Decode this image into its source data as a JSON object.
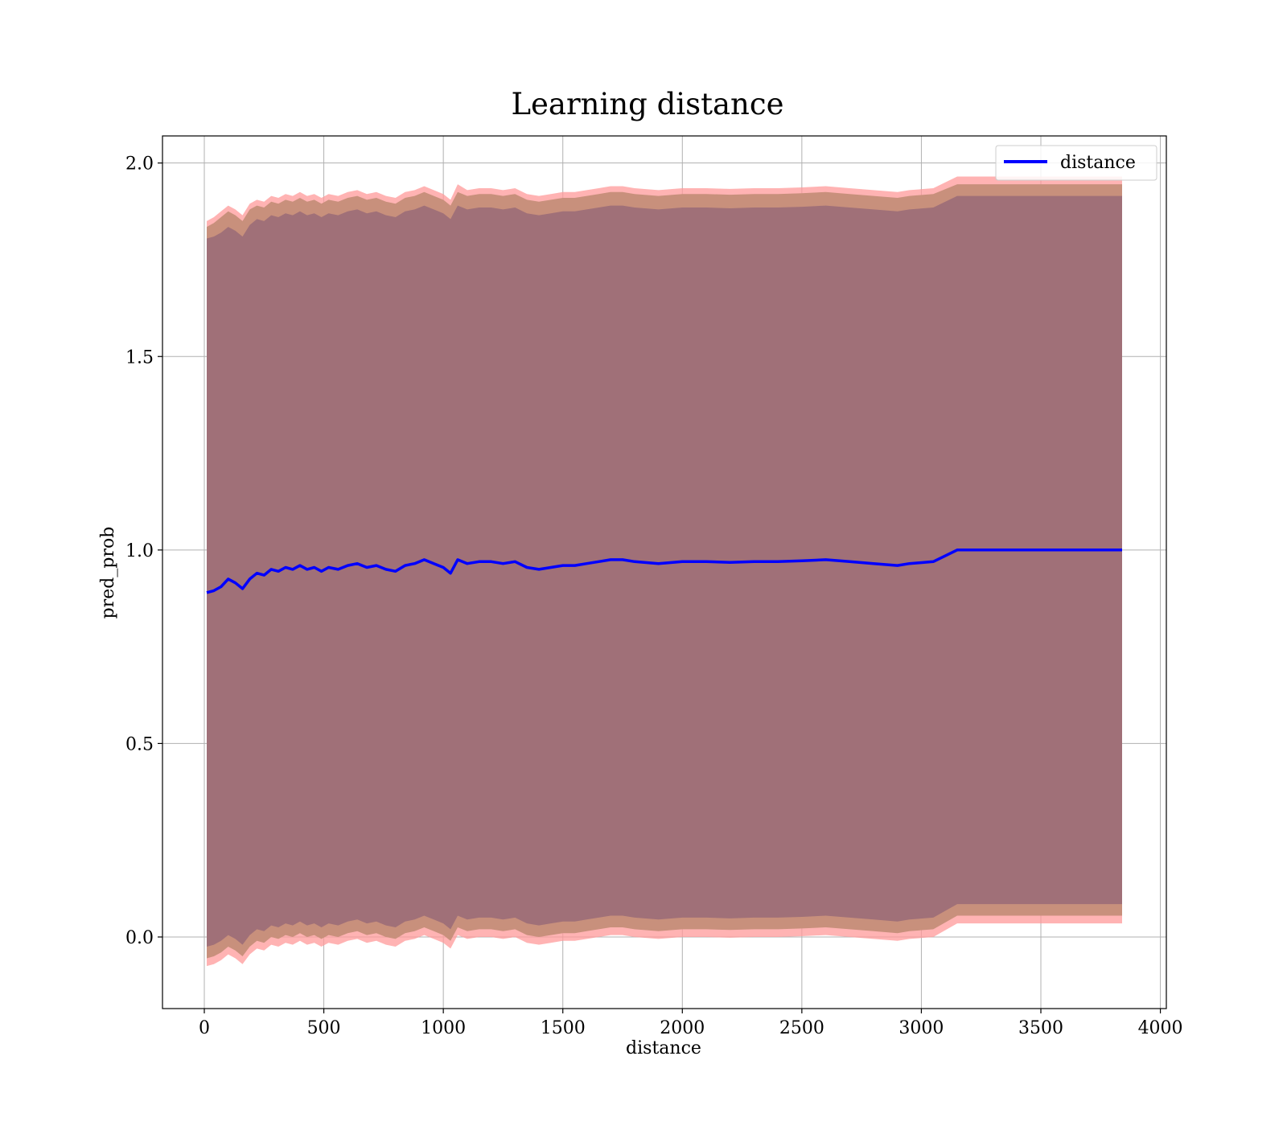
{
  "chart_data": {
    "type": "line",
    "title": "Learning distance",
    "xlabel": "distance",
    "ylabel": "pred_prob",
    "xlim": [
      -175,
      4025
    ],
    "ylim": [
      -0.185,
      2.07
    ],
    "xticks": [
      0,
      500,
      1000,
      1500,
      2000,
      2500,
      3000,
      3500,
      4000
    ],
    "xtick_labels": [
      "0",
      "500",
      "1000",
      "1500",
      "2000",
      "2500",
      "3000",
      "3500",
      "4000"
    ],
    "yticks": [
      0.0,
      0.5,
      1.0,
      1.5,
      2.0
    ],
    "ytick_labels": [
      "0.0",
      "0.5",
      "1.0",
      "1.5",
      "2.0"
    ],
    "grid": true,
    "legend": {
      "position": "top-right",
      "entries": [
        "distance"
      ]
    },
    "colors": {
      "line": "#0000ff",
      "band_outer": "#ff9a9a",
      "band_mid": "#c8907c",
      "band_inner": "#a07078",
      "grid": "#b0b0b0"
    },
    "series": [
      {
        "name": "distance",
        "x": [
          10,
          40,
          70,
          100,
          130,
          160,
          190,
          220,
          250,
          280,
          310,
          340,
          370,
          400,
          430,
          460,
          490,
          520,
          560,
          600,
          640,
          680,
          720,
          760,
          800,
          840,
          880,
          920,
          960,
          1000,
          1030,
          1060,
          1100,
          1150,
          1200,
          1250,
          1300,
          1350,
          1400,
          1450,
          1500,
          1550,
          1600,
          1650,
          1700,
          1750,
          1800,
          1900,
          2000,
          2100,
          2200,
          2300,
          2400,
          2500,
          2600,
          2700,
          2800,
          2900,
          2950,
          3050,
          3150,
          3200,
          3500,
          3840
        ],
        "y": [
          0.89,
          0.895,
          0.905,
          0.925,
          0.915,
          0.9,
          0.925,
          0.94,
          0.935,
          0.95,
          0.945,
          0.955,
          0.95,
          0.96,
          0.95,
          0.955,
          0.945,
          0.955,
          0.95,
          0.96,
          0.965,
          0.955,
          0.96,
          0.95,
          0.945,
          0.96,
          0.965,
          0.975,
          0.965,
          0.955,
          0.94,
          0.975,
          0.965,
          0.97,
          0.97,
          0.965,
          0.97,
          0.955,
          0.95,
          0.955,
          0.96,
          0.96,
          0.965,
          0.97,
          0.975,
          0.975,
          0.97,
          0.965,
          0.97,
          0.97,
          0.968,
          0.97,
          0.97,
          0.972,
          0.975,
          0.97,
          0.965,
          0.96,
          0.965,
          0.97,
          1.0,
          1.0,
          1.0,
          1.0
        ]
      }
    ],
    "bands": [
      {
        "x": [
          10,
          40,
          70,
          100,
          130,
          160,
          190,
          220,
          250,
          280,
          310,
          340,
          370,
          400,
          430,
          460,
          490,
          520,
          560,
          600,
          640,
          680,
          720,
          760,
          800,
          840,
          880,
          920,
          960,
          1000,
          1030,
          1060,
          1100,
          1150,
          1200,
          1250,
          1300,
          1350,
          1400,
          1450,
          1500,
          1550,
          1600,
          1650,
          1700,
          1750,
          1800,
          1900,
          2000,
          2100,
          2200,
          2300,
          2400,
          2500,
          2600,
          2700,
          2800,
          2900,
          2950,
          3050,
          3150,
          3200,
          3500,
          3840
        ],
        "upper": [
          1.85,
          1.86,
          1.875,
          1.89,
          1.88,
          1.865,
          1.895,
          1.905,
          1.9,
          1.915,
          1.91,
          1.92,
          1.915,
          1.925,
          1.915,
          1.92,
          1.91,
          1.92,
          1.915,
          1.925,
          1.93,
          1.92,
          1.925,
          1.915,
          1.91,
          1.925,
          1.93,
          1.94,
          1.93,
          1.92,
          1.905,
          1.945,
          1.93,
          1.935,
          1.935,
          1.93,
          1.935,
          1.92,
          1.915,
          1.92,
          1.925,
          1.925,
          1.93,
          1.935,
          1.94,
          1.94,
          1.935,
          1.93,
          1.935,
          1.935,
          1.933,
          1.935,
          1.935,
          1.937,
          1.94,
          1.935,
          1.93,
          1.925,
          1.93,
          1.935,
          1.965,
          1.965,
          1.965,
          1.965
        ],
        "lower": [
          -0.075,
          -0.07,
          -0.06,
          -0.045,
          -0.055,
          -0.07,
          -0.045,
          -0.03,
          -0.035,
          -0.02,
          -0.025,
          -0.015,
          -0.02,
          -0.01,
          -0.02,
          -0.015,
          -0.025,
          -0.015,
          -0.02,
          -0.01,
          -0.005,
          -0.015,
          -0.01,
          -0.02,
          -0.025,
          -0.01,
          -0.005,
          0.005,
          -0.005,
          -0.015,
          -0.03,
          0.005,
          -0.005,
          0.0,
          0.0,
          -0.005,
          0.0,
          -0.015,
          -0.02,
          -0.015,
          -0.01,
          -0.01,
          -0.005,
          0.0,
          0.005,
          0.005,
          0.0,
          -0.005,
          0.0,
          0.0,
          -0.002,
          0.0,
          0.0,
          0.002,
          0.005,
          0.0,
          -0.005,
          -0.01,
          -0.005,
          0.0,
          0.035,
          0.035,
          0.035,
          0.035
        ]
      },
      {
        "x": [
          10,
          40,
          70,
          100,
          130,
          160,
          190,
          220,
          250,
          280,
          310,
          340,
          370,
          400,
          430,
          460,
          490,
          520,
          560,
          600,
          640,
          680,
          720,
          760,
          800,
          840,
          880,
          920,
          960,
          1000,
          1030,
          1060,
          1100,
          1150,
          1200,
          1250,
          1300,
          1350,
          1400,
          1450,
          1500,
          1550,
          1600,
          1650,
          1700,
          1750,
          1800,
          1900,
          2000,
          2100,
          2200,
          2300,
          2400,
          2500,
          2600,
          2700,
          2800,
          2900,
          2950,
          3050,
          3150,
          3200,
          3500,
          3840
        ],
        "upper": [
          1.835,
          1.845,
          1.86,
          1.875,
          1.865,
          1.85,
          1.88,
          1.89,
          1.885,
          1.9,
          1.895,
          1.905,
          1.9,
          1.91,
          1.9,
          1.905,
          1.895,
          1.905,
          1.9,
          1.91,
          1.915,
          1.905,
          1.91,
          1.9,
          1.895,
          1.91,
          1.915,
          1.925,
          1.915,
          1.905,
          1.89,
          1.925,
          1.915,
          1.92,
          1.92,
          1.915,
          1.92,
          1.905,
          1.9,
          1.905,
          1.91,
          1.91,
          1.915,
          1.92,
          1.925,
          1.925,
          1.92,
          1.915,
          1.92,
          1.92,
          1.918,
          1.92,
          1.92,
          1.922,
          1.925,
          1.92,
          1.915,
          1.91,
          1.915,
          1.92,
          1.945,
          1.945,
          1.945,
          1.945
        ],
        "lower": [
          -0.055,
          -0.05,
          -0.04,
          -0.025,
          -0.035,
          -0.05,
          -0.025,
          -0.01,
          -0.015,
          0.0,
          -0.005,
          0.005,
          0.0,
          0.01,
          0.0,
          0.005,
          -0.005,
          0.005,
          0.0,
          0.01,
          0.015,
          0.005,
          0.01,
          0.0,
          -0.005,
          0.01,
          0.015,
          0.025,
          0.015,
          0.005,
          -0.01,
          0.025,
          0.015,
          0.02,
          0.02,
          0.015,
          0.02,
          0.005,
          0.0,
          0.005,
          0.01,
          0.01,
          0.015,
          0.02,
          0.025,
          0.025,
          0.02,
          0.015,
          0.02,
          0.02,
          0.018,
          0.02,
          0.02,
          0.022,
          0.025,
          0.02,
          0.015,
          0.01,
          0.015,
          0.02,
          0.055,
          0.055,
          0.055,
          0.055
        ]
      },
      {
        "x": [
          10,
          40,
          70,
          100,
          130,
          160,
          190,
          220,
          250,
          280,
          310,
          340,
          370,
          400,
          430,
          460,
          490,
          520,
          560,
          600,
          640,
          680,
          720,
          760,
          800,
          840,
          880,
          920,
          960,
          1000,
          1030,
          1060,
          1100,
          1150,
          1200,
          1250,
          1300,
          1350,
          1400,
          1450,
          1500,
          1550,
          1600,
          1650,
          1700,
          1750,
          1800,
          1900,
          2000,
          2100,
          2200,
          2300,
          2400,
          2500,
          2600,
          2700,
          2800,
          2900,
          2950,
          3050,
          3150,
          3200,
          3500,
          3840
        ],
        "upper": [
          1.805,
          1.81,
          1.82,
          1.835,
          1.825,
          1.81,
          1.84,
          1.855,
          1.85,
          1.865,
          1.86,
          1.87,
          1.865,
          1.875,
          1.865,
          1.87,
          1.86,
          1.87,
          1.865,
          1.875,
          1.88,
          1.87,
          1.875,
          1.865,
          1.86,
          1.875,
          1.88,
          1.89,
          1.88,
          1.87,
          1.855,
          1.89,
          1.88,
          1.885,
          1.885,
          1.88,
          1.885,
          1.87,
          1.865,
          1.87,
          1.875,
          1.875,
          1.88,
          1.885,
          1.89,
          1.89,
          1.885,
          1.88,
          1.885,
          1.885,
          1.883,
          1.885,
          1.885,
          1.887,
          1.89,
          1.885,
          1.88,
          1.875,
          1.88,
          1.885,
          1.915,
          1.915,
          1.915,
          1.915
        ],
        "lower": [
          -0.025,
          -0.02,
          -0.01,
          0.005,
          -0.005,
          -0.02,
          0.005,
          0.02,
          0.015,
          0.03,
          0.025,
          0.035,
          0.03,
          0.04,
          0.03,
          0.035,
          0.025,
          0.035,
          0.03,
          0.04,
          0.045,
          0.035,
          0.04,
          0.03,
          0.025,
          0.04,
          0.045,
          0.055,
          0.045,
          0.035,
          0.02,
          0.055,
          0.045,
          0.05,
          0.05,
          0.045,
          0.05,
          0.035,
          0.03,
          0.035,
          0.04,
          0.04,
          0.045,
          0.05,
          0.055,
          0.055,
          0.05,
          0.045,
          0.05,
          0.05,
          0.048,
          0.05,
          0.05,
          0.052,
          0.055,
          0.05,
          0.045,
          0.04,
          0.045,
          0.05,
          0.085,
          0.085,
          0.085,
          0.085
        ]
      }
    ]
  }
}
